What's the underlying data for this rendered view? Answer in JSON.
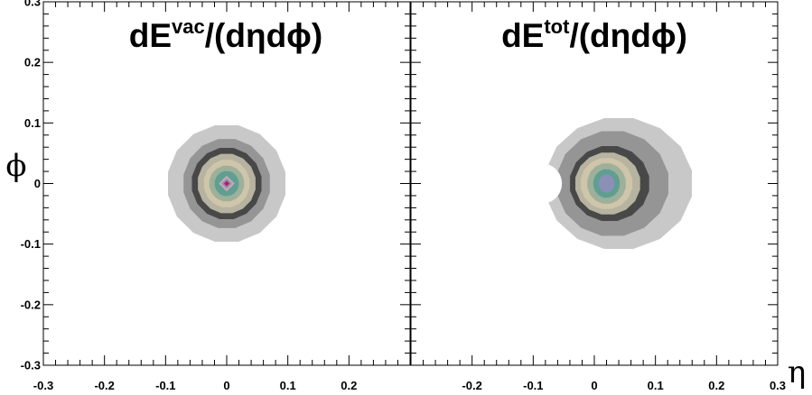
{
  "chart_data": [
    {
      "type": "contour",
      "title_main": "dE",
      "title_sup": "vac",
      "title_rest": "/(dηdϕ)",
      "xlabel": "",
      "ylabel": "ϕ",
      "xlim": [
        -0.3,
        0.3
      ],
      "ylim": [
        -0.3,
        0.3
      ],
      "xticks": [
        "-0.3",
        "-0.2",
        "-0.1",
        "0",
        "0.1",
        "0.2"
      ],
      "yticks": [
        "0.3",
        "0.2",
        "0.1",
        "0",
        "-0.1",
        "-0.2",
        "-0.3"
      ],
      "peak": {
        "eta": 0.0,
        "phi": 0.0
      },
      "contours": [
        {
          "rx": 0.098,
          "ry": 0.098,
          "dx": 0.0,
          "color": "#c8c8c8"
        },
        {
          "rx": 0.072,
          "ry": 0.075,
          "dx": 0.0,
          "color": "#959595"
        },
        {
          "rx": 0.058,
          "ry": 0.06,
          "dx": 0.0,
          "color": "#484848"
        },
        {
          "rx": 0.048,
          "ry": 0.05,
          "dx": 0.0,
          "color": "#b7b3a1"
        },
        {
          "rx": 0.038,
          "ry": 0.04,
          "dx": 0.0,
          "color": "#cfc5aa"
        },
        {
          "rx": 0.029,
          "ry": 0.03,
          "dx": 0.0,
          "color": "#9eb09a"
        },
        {
          "rx": 0.02,
          "ry": 0.021,
          "dx": 0.0,
          "color": "#5f9f92"
        },
        {
          "rx": 0.013,
          "ry": 0.013,
          "dx": 0.0,
          "color": "#c9a9b4",
          "diamond": true
        },
        {
          "rx": 0.0085,
          "ry": 0.0085,
          "dx": 0.0,
          "color": "#8c8fb8",
          "diamond": true
        },
        {
          "rx": 0.0045,
          "ry": 0.0045,
          "dx": 0.0,
          "color": "#c2185b",
          "diamond": true
        }
      ]
    },
    {
      "type": "contour",
      "title_main": "dE",
      "title_sup": "tot",
      "title_rest": "/(dηdϕ)",
      "xlabel": "η",
      "ylabel": "",
      "xlim": [
        -0.3,
        0.3
      ],
      "ylim": [
        -0.3,
        0.3
      ],
      "xticks": [
        "-0.2",
        "-0.1",
        "0",
        "0.1",
        "0.2",
        "0.3"
      ],
      "yticks": [],
      "peak": {
        "eta": 0.01,
        "phi": 0.0
      },
      "contours": [
        {
          "rx": 0.122,
          "ry": 0.11,
          "dx": 0.03,
          "color": "#c8c8c8"
        },
        {
          "rx": 0.093,
          "ry": 0.088,
          "dx": 0.02,
          "color": "#959595"
        },
        {
          "rx": 0.066,
          "ry": 0.063,
          "dx": 0.015,
          "color": "#484848"
        },
        {
          "rx": 0.054,
          "ry": 0.052,
          "dx": 0.012,
          "color": "#b7b3a1"
        },
        {
          "rx": 0.043,
          "ry": 0.043,
          "dx": 0.01,
          "color": "#cfc5aa"
        },
        {
          "rx": 0.032,
          "ry": 0.034,
          "dx": 0.01,
          "color": "#9eb09a"
        },
        {
          "rx": 0.022,
          "ry": 0.024,
          "dx": 0.01,
          "color": "#5f9f92"
        },
        {
          "rx": 0.013,
          "ry": 0.015,
          "dx": 0.01,
          "color": "#8c8fb8"
        }
      ],
      "notch": {
        "eta": -0.086,
        "phi": 0.0,
        "r": 0.033
      }
    }
  ]
}
